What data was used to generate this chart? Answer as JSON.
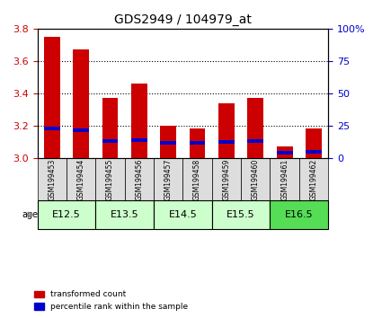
{
  "title": "GDS2949 / 104979_at",
  "samples": [
    "GSM199453",
    "GSM199454",
    "GSM199455",
    "GSM199456",
    "GSM199457",
    "GSM199458",
    "GSM199459",
    "GSM199460",
    "GSM199461",
    "GSM199462"
  ],
  "red_values": [
    3.75,
    3.67,
    3.37,
    3.46,
    3.2,
    3.185,
    3.34,
    3.37,
    3.075,
    3.185
  ],
  "blue_values": [
    3.185,
    3.175,
    3.105,
    3.11,
    3.095,
    3.095,
    3.1,
    3.105,
    3.035,
    3.04
  ],
  "ylim_left": [
    3.0,
    3.8
  ],
  "ylim_right": [
    0,
    100
  ],
  "yticks_left": [
    3.0,
    3.2,
    3.4,
    3.6,
    3.8
  ],
  "yticks_right": [
    0,
    25,
    50,
    75,
    100
  ],
  "ytick_labels_right": [
    "0",
    "25",
    "50",
    "75",
    "100%"
  ],
  "age_groups": [
    {
      "label": "E12.5",
      "start": 0,
      "end": 2,
      "color": "#ccffcc"
    },
    {
      "label": "E13.5",
      "start": 2,
      "end": 4,
      "color": "#ccffcc"
    },
    {
      "label": "E14.5",
      "start": 4,
      "end": 6,
      "color": "#ccffcc"
    },
    {
      "label": "E15.5",
      "start": 6,
      "end": 8,
      "color": "#ccffcc"
    },
    {
      "label": "E16.5",
      "start": 8,
      "end": 10,
      "color": "#55dd55"
    }
  ],
  "bar_color_red": "#cc0000",
  "bar_color_blue": "#0000cc",
  "bar_width": 0.55,
  "base": 3.0,
  "bg_color_chart": "#ffffff",
  "tick_label_color_left": "#cc0000",
  "tick_label_color_right": "#0000cc",
  "sample_box_color": "#dddddd",
  "age_label": "age",
  "legend_labels": [
    "transformed count",
    "percentile rank within the sample"
  ]
}
